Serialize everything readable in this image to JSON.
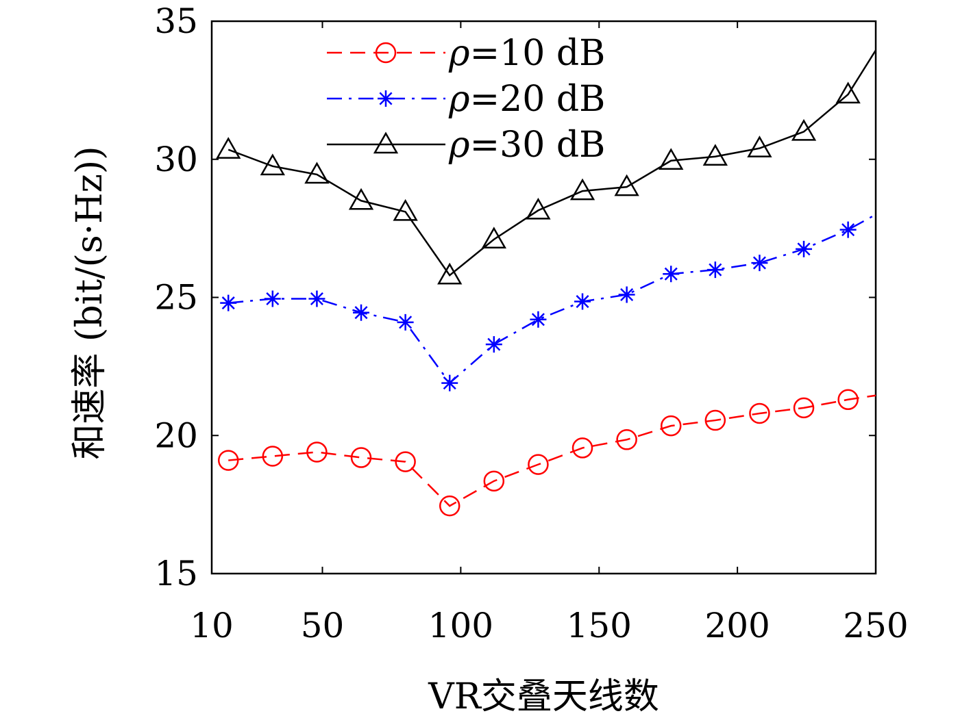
{
  "chart_data": {
    "type": "line",
    "xlabel": "VR交叠天线数",
    "ylabel": "和速率 (bit/(s·Hz))",
    "xlim": [
      10,
      250
    ],
    "ylim": [
      15,
      35
    ],
    "xticks": [
      10,
      50,
      100,
      150,
      200,
      250
    ],
    "yticks": [
      15,
      20,
      25,
      30,
      35
    ],
    "grid": false,
    "legend_position": "top-center",
    "x": [
      16,
      32,
      48,
      64,
      80,
      96,
      112,
      128,
      144,
      160,
      176,
      192,
      208,
      224,
      240
    ],
    "series": [
      {
        "name": "ρ=10 dB",
        "legend_symbol": "ρ",
        "legend_value": "=10 dB",
        "color": "#ff0000",
        "line_style": "dashed",
        "marker": "circle",
        "values": [
          19.1,
          19.25,
          19.4,
          19.2,
          19.05,
          17.45,
          18.35,
          18.95,
          19.55,
          19.85,
          20.35,
          20.55,
          20.8,
          21.0,
          21.3
        ],
        "end_value": 21.45
      },
      {
        "name": "ρ=20 dB",
        "legend_symbol": "ρ",
        "legend_value": "=20 dB",
        "color": "#0000ff",
        "line_style": "dashdot",
        "marker": "asterisk",
        "values": [
          24.8,
          24.95,
          24.95,
          24.45,
          24.1,
          21.9,
          23.3,
          24.2,
          24.85,
          25.1,
          25.85,
          26.0,
          26.25,
          26.75,
          27.45
        ],
        "end_value": 28.0
      },
      {
        "name": "ρ=30 dB",
        "legend_symbol": "ρ",
        "legend_value": "=30 dB",
        "color": "#000000",
        "line_style": "solid",
        "marker": "triangle",
        "values": [
          30.35,
          29.75,
          29.45,
          28.5,
          28.1,
          25.8,
          27.1,
          28.15,
          28.85,
          29.0,
          29.95,
          30.1,
          30.4,
          31.0,
          32.35
        ],
        "end_value": 33.95
      }
    ]
  }
}
